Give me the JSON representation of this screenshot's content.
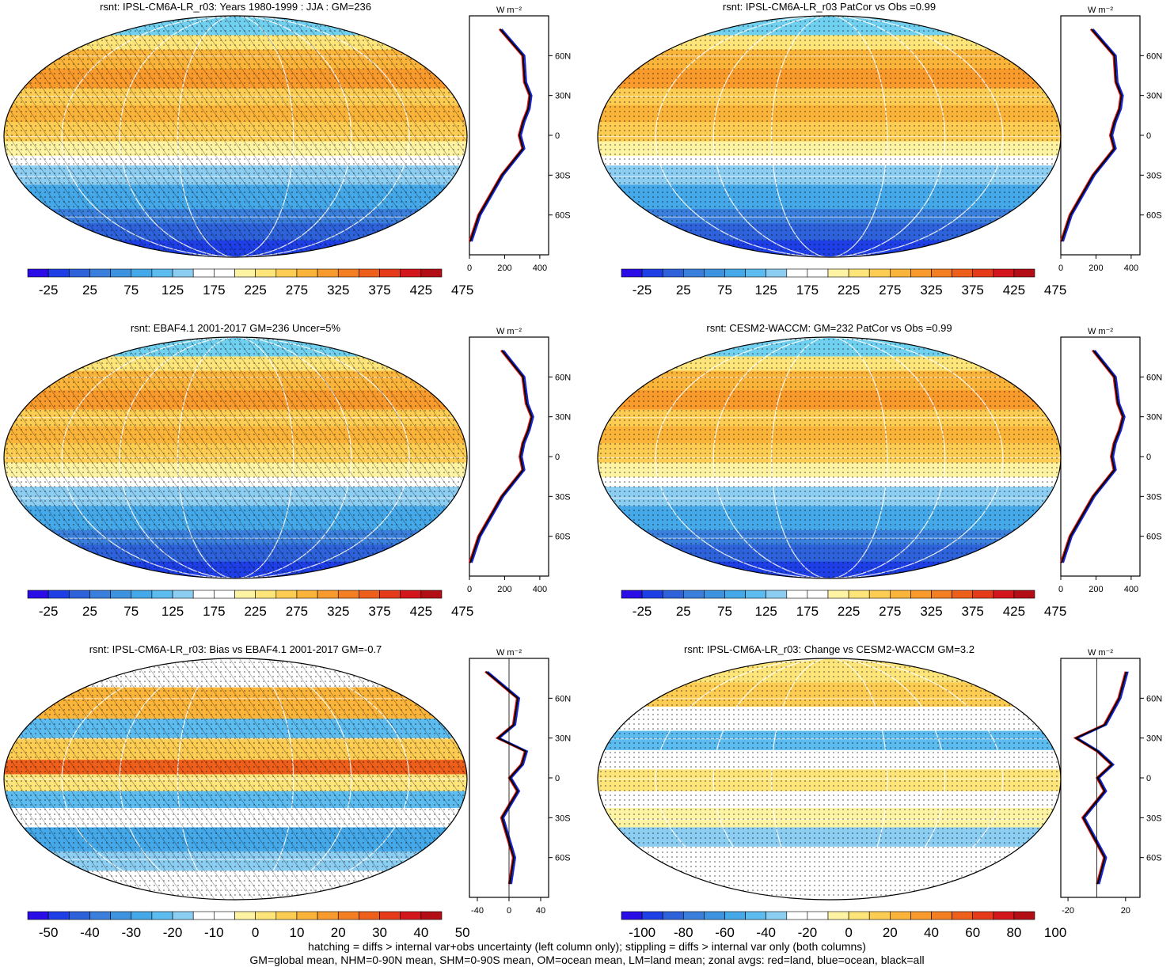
{
  "colors": {
    "scale": [
      "#2a0ce6",
      "#1f3fe6",
      "#2d62db",
      "#3a7fdb",
      "#3d93e0",
      "#45a8e8",
      "#5cbbef",
      "#8ccdf2",
      "#ffffff",
      "#ffffff",
      "#fdf3a2",
      "#fde57a",
      "#fccd52",
      "#fbb43a",
      "#f89a2c",
      "#f47e22",
      "#ef5f1c",
      "#e53b1a",
      "#d3161b",
      "#b30d15"
    ],
    "red": "#e8151b",
    "blue": "#1a23d8",
    "black": "#000000"
  },
  "panels": [
    {
      "title": "rsnt: IPSL-CM6A-LR_r03: Years 1980-1999 : JJA : GM=236",
      "kind": "abs",
      "hatch": true,
      "row": 0,
      "col": 0
    },
    {
      "title": "rsnt: IPSL-CM6A-LR_r03 PatCor vs Obs =0.99",
      "kind": "abs",
      "hatch": false,
      "row": 0,
      "col": 1
    },
    {
      "title": "rsnt: EBAF4.1 2001-2017 GM=236 Uncer=5%",
      "kind": "abs",
      "hatch": true,
      "row": 1,
      "col": 0
    },
    {
      "title": "rsnt: CESM2-WACCM: GM=232 PatCor vs Obs =0.99",
      "kind": "abs",
      "hatch": false,
      "row": 1,
      "col": 1
    },
    {
      "title": "rsnt: IPSL-CM6A-LR_r03: Bias vs EBAF4.1 2001-2017 GM=-0.7",
      "kind": "bias",
      "hatch": true,
      "row": 2,
      "col": 0
    },
    {
      "title": "rsnt: IPSL-CM6A-LR_r03: Change vs CESM2-WACCM GM=3.2",
      "kind": "change",
      "hatch": false,
      "row": 2,
      "col": 1
    }
  ],
  "lat_labels": [
    "60N",
    "30N",
    "0",
    "30S",
    "60S"
  ],
  "profile_unit": "W m⁻²",
  "colorbars": {
    "abs": [
      "-25",
      "25",
      "75",
      "125",
      "175",
      "225",
      "275",
      "325",
      "375",
      "425",
      "475"
    ],
    "bias": [
      "-50",
      "-40",
      "-30",
      "-20",
      "-10",
      "0",
      "10",
      "20",
      "30",
      "40",
      "50"
    ],
    "change": [
      "-100",
      "-80",
      "-60",
      "-40",
      "-20",
      "0",
      "20",
      "40",
      "60",
      "80",
      "100"
    ]
  },
  "profile_ticks": {
    "abs": [
      "0",
      "200",
      "400"
    ],
    "bias": [
      "-40",
      "0",
      "40"
    ],
    "change": [
      "-20",
      "20"
    ]
  },
  "footer": [
    "hatching = diffs > internal var+obs uncertainty (left column only); stippling = diffs > internal var only (both columns)",
    "GM=global mean, NHM=0-90N mean, SHM=0-90S mean, OM=ocean mean, LM=land mean; zonal avgs: red=land, blue=ocean, black=all"
  ],
  "chart_data": [
    {
      "type": "heatmap",
      "title": "rsnt: IPSL-CM6A-LR_r03: Years 1980-1999 : JJA : GM=236",
      "legend_ticks": [
        -25,
        25,
        75,
        125,
        175,
        225,
        275,
        325,
        375,
        425,
        475
      ],
      "zonal_mean": {
        "lat": [
          80,
          60,
          40,
          30,
          20,
          10,
          0,
          -10,
          -30,
          -60,
          -80
        ],
        "values": [
          170,
          300,
          310,
          340,
          330,
          300,
          280,
          300,
          180,
          50,
          0
        ],
        "xlim": [
          0,
          450
        ]
      }
    },
    {
      "type": "heatmap",
      "title": "rsnt: IPSL-CM6A-LR_r03 PatCor vs Obs =0.99",
      "legend_ticks": [
        -25,
        25,
        75,
        125,
        175,
        225,
        275,
        325,
        375,
        425,
        475
      ],
      "zonal_mean": {
        "lat": [
          80,
          60,
          40,
          30,
          20,
          10,
          0,
          -10,
          -30,
          -60,
          -80
        ],
        "values": [
          170,
          300,
          310,
          340,
          330,
          300,
          280,
          300,
          180,
          50,
          0
        ],
        "xlim": [
          0,
          450
        ]
      }
    },
    {
      "type": "heatmap",
      "title": "rsnt: EBAF4.1 2001-2017 GM=236 Uncer=5%",
      "legend_ticks": [
        -25,
        25,
        75,
        125,
        175,
        225,
        275,
        325,
        375,
        425,
        475
      ],
      "zonal_mean": {
        "lat": [
          80,
          60,
          40,
          30,
          20,
          10,
          0,
          -10,
          -30,
          -60,
          -80
        ],
        "values": [
          180,
          300,
          320,
          350,
          330,
          300,
          285,
          300,
          180,
          50,
          0
        ],
        "xlim": [
          0,
          450
        ]
      }
    },
    {
      "type": "heatmap",
      "title": "rsnt: CESM2-WACCM: GM=232 PatCor vs Obs =0.99",
      "legend_ticks": [
        -25,
        25,
        75,
        125,
        175,
        225,
        275,
        325,
        375,
        425,
        475
      ],
      "zonal_mean": {
        "lat": [
          80,
          60,
          40,
          30,
          20,
          10,
          0,
          -10,
          -30,
          -60,
          -80
        ],
        "values": [
          180,
          300,
          320,
          350,
          330,
          300,
          285,
          300,
          180,
          50,
          0
        ],
        "xlim": [
          0,
          450
        ]
      }
    },
    {
      "type": "heatmap",
      "title": "rsnt: IPSL-CM6A-LR_r03: Bias vs EBAF4.1 2001-2017 GM=-0.7",
      "legend_ticks": [
        -50,
        -40,
        -30,
        -20,
        -10,
        0,
        10,
        20,
        30,
        40,
        50
      ],
      "zonal_mean": {
        "lat": [
          80,
          60,
          40,
          30,
          20,
          10,
          0,
          -10,
          -30,
          -60,
          -80
        ],
        "values": [
          -30,
          10,
          5,
          -15,
          20,
          15,
          0,
          10,
          -10,
          5,
          0
        ],
        "xlim": [
          -50,
          50
        ]
      }
    },
    {
      "type": "heatmap",
      "title": "rsnt: IPSL-CM6A-LR_r03: Change vs CESM2-WACCM GM=3.2",
      "legend_ticks": [
        -100,
        -80,
        -60,
        -40,
        -20,
        0,
        20,
        40,
        60,
        80,
        100
      ],
      "zonal_mean": {
        "lat": [
          80,
          60,
          40,
          30,
          20,
          10,
          0,
          -10,
          -30,
          -60,
          -80
        ],
        "values": [
          20,
          15,
          5,
          -15,
          0,
          10,
          0,
          5,
          -10,
          5,
          0
        ],
        "xlim": [
          -25,
          30
        ]
      }
    }
  ]
}
